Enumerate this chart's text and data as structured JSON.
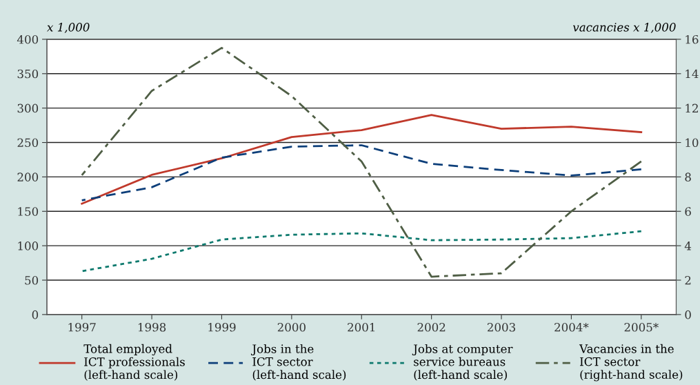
{
  "chart_data": {
    "type": "line",
    "ylabel": "x 1,000",
    "y2label": "vacancies x 1,000",
    "categories": [
      "1997",
      "1998",
      "1999",
      "2000",
      "2001",
      "2002",
      "2003",
      "2004*",
      "2005*"
    ],
    "series": [
      {
        "name": "Total employed\nICT professionals\n(left-hand scale)",
        "color": "#c0392b",
        "line_style": "solid",
        "values": [
          161,
          203,
          227,
          258,
          268,
          290,
          270,
          273,
          265
        ]
      },
      {
        "name": "Jobs in the\nICT sector\n(left-hand scale)",
        "color": "#0d3f7a",
        "line_style": "dashed",
        "values": [
          166,
          185,
          228,
          244,
          246,
          219,
          210,
          202,
          211
        ]
      },
      {
        "name": "Jobs at computer\nservice bureaus\n(left-hand scale)",
        "color": "#0e7a6e",
        "line_style": "dotted",
        "values": [
          63,
          81,
          109,
          116,
          118,
          108,
          109,
          111,
          121
        ]
      },
      {
        "name": "Vacancies in the\nICT sector\n(right-hand scale)",
        "color": "#4f5e45",
        "line_style": "dashdot",
        "axis": "y2",
        "values": [
          8.1,
          13.0,
          15.5,
          12.7,
          8.9,
          2.2,
          2.4,
          6.0,
          8.9
        ]
      }
    ],
    "ylim": [
      0,
      400
    ],
    "yticks": [
      0,
      50,
      100,
      150,
      200,
      250,
      300,
      350,
      400
    ],
    "y2lim": [
      0,
      16
    ],
    "y2ticks": [
      0,
      2,
      4,
      6,
      8,
      10,
      12,
      14,
      16
    ],
    "grid": "y",
    "legend": "bottom",
    "marker": "none"
  }
}
